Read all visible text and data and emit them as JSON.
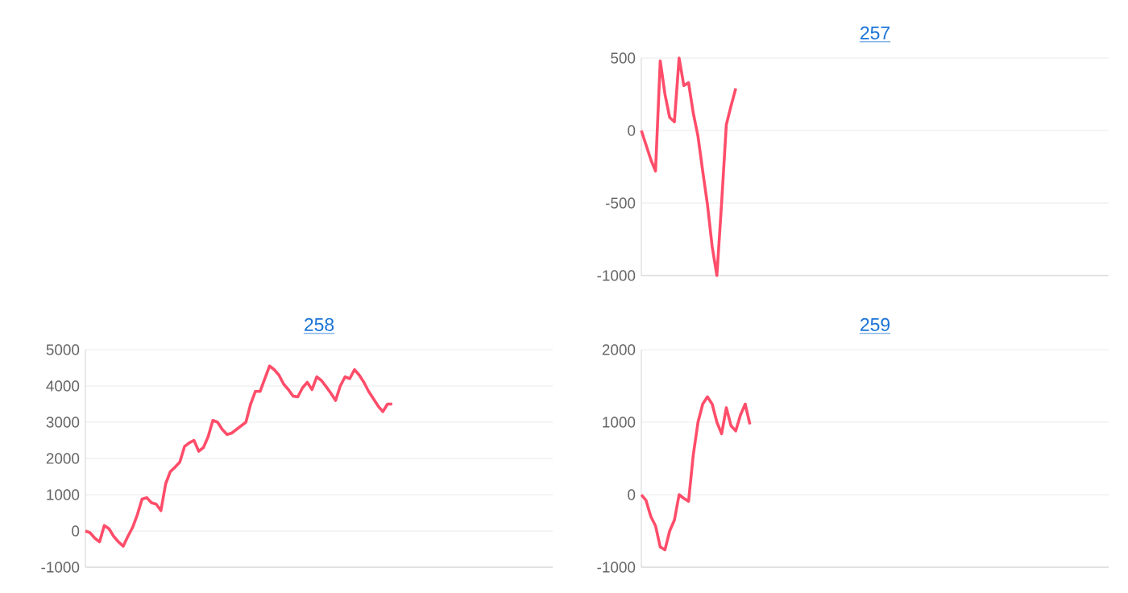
{
  "chart_data": [
    {
      "type": "line",
      "title": "257",
      "color": "#ff4d6a",
      "ylim": [
        -1000,
        500
      ],
      "yticks": [
        -1000,
        -500,
        0,
        500
      ],
      "grid": "y",
      "tick_labels": "y",
      "categories": [
        null,
        null,
        null,
        null,
        null,
        null,
        null,
        null,
        null,
        null,
        null,
        null,
        null,
        null,
        null,
        null,
        null,
        null,
        null,
        null,
        null,
        null,
        null,
        null,
        null,
        null,
        null,
        null,
        null,
        null,
        null,
        null,
        null,
        null,
        null,
        null,
        null,
        null,
        null,
        null,
        null,
        null,
        null,
        null,
        null,
        null,
        null,
        null,
        null,
        null,
        null,
        null,
        null,
        null,
        null,
        null,
        null,
        null,
        null,
        null,
        null,
        null,
        null,
        null,
        null,
        null,
        null,
        null,
        null,
        null,
        null,
        null,
        null,
        null,
        null,
        null,
        null,
        null,
        null,
        null,
        null,
        null,
        null,
        null,
        null,
        null,
        null,
        null,
        null,
        null,
        null,
        null,
        null,
        null,
        null,
        null,
        null,
        null,
        null,
        null
      ],
      "values": [
        0,
        -100,
        -200,
        -280,
        480,
        250,
        90,
        60,
        500,
        310,
        330,
        120,
        -40,
        -280,
        -510,
        -800,
        -1000,
        -500,
        40,
        170,
        290,
        null,
        null,
        null,
        null,
        null,
        null,
        null,
        null,
        null,
        null,
        null,
        null,
        null,
        null,
        null,
        null,
        null,
        null,
        null,
        null,
        null,
        null,
        null,
        null,
        null,
        null,
        null,
        null,
        null,
        null,
        null,
        null,
        null,
        null,
        null,
        null,
        null,
        null,
        null,
        null,
        null,
        null,
        null,
        null,
        null,
        null,
        null,
        null,
        null,
        null,
        null,
        null,
        null,
        null,
        null,
        null,
        null,
        null,
        null,
        null,
        null,
        null,
        null,
        null,
        null,
        null,
        null,
        null,
        null,
        null,
        null,
        null,
        null,
        null,
        null,
        null,
        null,
        null,
        null
      ]
    },
    {
      "type": "line",
      "title": "258",
      "color": "#ff4d6a",
      "ylim": [
        -1000,
        5000
      ],
      "yticks": [
        -1000,
        0,
        1000,
        2000,
        3000,
        4000,
        5000
      ],
      "grid": "y",
      "tick_labels": "y",
      "categories": [
        null,
        null,
        null,
        null,
        null,
        null,
        null,
        null,
        null,
        null,
        null,
        null,
        null,
        null,
        null,
        null,
        null,
        null,
        null,
        null,
        null,
        null,
        null,
        null,
        null,
        null,
        null,
        null,
        null,
        null,
        null,
        null,
        null,
        null,
        null,
        null,
        null,
        null,
        null,
        null,
        null,
        null,
        null,
        null,
        null,
        null,
        null,
        null,
        null,
        null,
        null,
        null,
        null,
        null,
        null,
        null,
        null,
        null,
        null,
        null,
        null,
        null,
        null,
        null,
        null,
        null,
        null,
        null,
        null,
        null,
        null,
        null,
        null,
        null,
        null,
        null,
        null,
        null,
        null,
        null,
        null,
        null,
        null,
        null,
        null,
        null,
        null,
        null,
        null,
        null,
        null,
        null,
        null,
        null,
        null,
        null,
        null,
        null,
        null,
        null
      ],
      "values": [
        0,
        -50,
        -200,
        -300,
        150,
        60,
        -150,
        -300,
        -420,
        -150,
        100,
        450,
        880,
        920,
        780,
        740,
        560,
        1300,
        1640,
        1760,
        1900,
        2330,
        2430,
        2500,
        2200,
        2300,
        2600,
        3050,
        3000,
        2800,
        2660,
        2700,
        2800,
        2900,
        3000,
        3500,
        3850,
        3850,
        4200,
        4550,
        4450,
        4300,
        4050,
        3900,
        3720,
        3700,
        3950,
        4100,
        3900,
        4250,
        4150,
        3980,
        3800,
        3600,
        4000,
        4250,
        4200,
        4450,
        4300,
        4100,
        3850,
        3650,
        3450,
        3290,
        3500,
        3500,
        null,
        null,
        null,
        null,
        null,
        null,
        null,
        null,
        null,
        null,
        null,
        null,
        null,
        null,
        null,
        null,
        null,
        null,
        null,
        null,
        null,
        null,
        null,
        null,
        null,
        null,
        null,
        null,
        null,
        null,
        null,
        null,
        null,
        null
      ]
    },
    {
      "type": "line",
      "title": "259",
      "color": "#ff4d6a",
      "ylim": [
        -1000,
        2000
      ],
      "yticks": [
        -1000,
        0,
        1000,
        2000
      ],
      "grid": "y",
      "tick_labels": "y",
      "categories": [
        null,
        null,
        null,
        null,
        null,
        null,
        null,
        null,
        null,
        null,
        null,
        null,
        null,
        null,
        null,
        null,
        null,
        null,
        null,
        null,
        null,
        null,
        null,
        null,
        null,
        null,
        null,
        null,
        null,
        null,
        null,
        null,
        null,
        null,
        null,
        null,
        null,
        null,
        null,
        null,
        null,
        null,
        null,
        null,
        null,
        null,
        null,
        null,
        null,
        null,
        null,
        null,
        null,
        null,
        null,
        null,
        null,
        null,
        null,
        null,
        null,
        null,
        null,
        null,
        null,
        null,
        null,
        null,
        null,
        null,
        null,
        null,
        null,
        null,
        null,
        null,
        null,
        null,
        null,
        null,
        null,
        null,
        null,
        null,
        null,
        null,
        null,
        null,
        null,
        null,
        null,
        null,
        null,
        null,
        null,
        null,
        null,
        null,
        null,
        null
      ],
      "values": [
        0,
        -80,
        -300,
        -430,
        -720,
        -760,
        -500,
        -350,
        0,
        -50,
        -90,
        550,
        1000,
        1250,
        1350,
        1250,
        1000,
        840,
        1200,
        950,
        880,
        1100,
        1250,
        970,
        null,
        null,
        null,
        null,
        null,
        null,
        null,
        null,
        null,
        null,
        null,
        null,
        null,
        null,
        null,
        null,
        null,
        null,
        null,
        null,
        null,
        null,
        null,
        null,
        null,
        null,
        null,
        null,
        null,
        null,
        null,
        null,
        null,
        null,
        null,
        null,
        null,
        null,
        null,
        null,
        null,
        null,
        null,
        null,
        null,
        null,
        null,
        null,
        null,
        null,
        null,
        null,
        null,
        null,
        null,
        null,
        null,
        null,
        null,
        null,
        null,
        null,
        null,
        null,
        null,
        null,
        null,
        null,
        null,
        null,
        null,
        null,
        null,
        null,
        null,
        null
      ]
    }
  ]
}
